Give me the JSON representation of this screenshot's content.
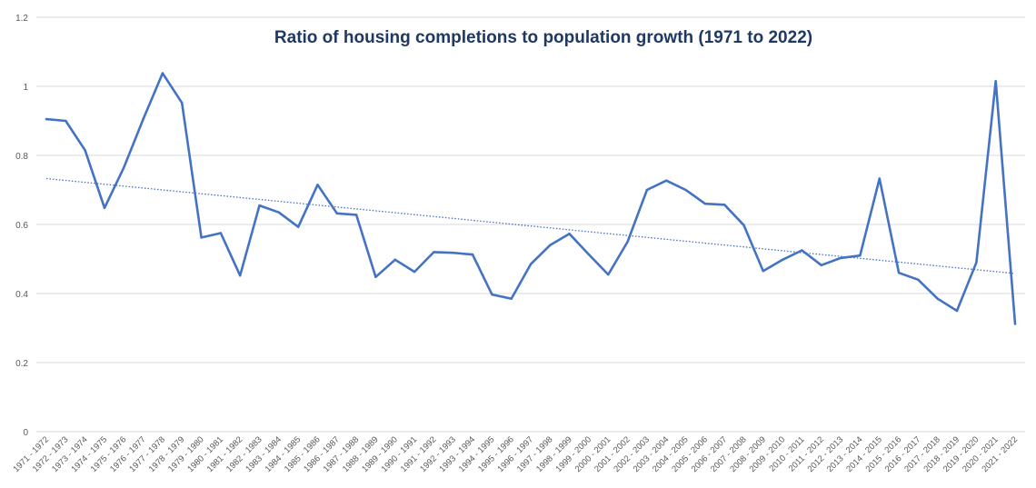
{
  "chart_data": {
    "type": "line",
    "title": "Ratio of housing completions to population growth (1971 to 2022)",
    "xlabel": "",
    "ylabel": "",
    "ylim": [
      0,
      1.2
    ],
    "yticks": [
      "0",
      "0.2",
      "0.4",
      "0.6",
      "0.8",
      "1",
      "1.2"
    ],
    "ytick_values": [
      0,
      0.2,
      0.4,
      0.6,
      0.8,
      1.0,
      1.2
    ],
    "grid": true,
    "legend": "none",
    "categories": [
      "1971 - 1972",
      "1972 - 1973",
      "1973 - 1974",
      "1974 - 1975",
      "1975 - 1976",
      "1976 - 1977",
      "1977 - 1978",
      "1978 - 1979",
      "1979 - 1980",
      "1980 - 1981",
      "1981 - 1982",
      "1982 - 1983",
      "1983 - 1984",
      "1984 - 1985",
      "1985 - 1986",
      "1986 - 1987",
      "1987 - 1988",
      "1988 - 1989",
      "1989 - 1990",
      "1990 - 1991",
      "1991 - 1992",
      "1992 - 1993",
      "1993 - 1994",
      "1994 - 1995",
      "1995 - 1996",
      "1996 - 1997",
      "1997 - 1998",
      "1998 - 1999",
      "1999 - 2000",
      "2000 - 2001",
      "2001 - 2002",
      "2002 - 2003",
      "2003 - 2004",
      "2004 - 2005",
      "2005 - 2006",
      "2006 - 2007",
      "2007 - 2008",
      "2008 - 2009",
      "2009 - 2010",
      "2010 - 2011",
      "2011 - 2012",
      "2012 - 2013",
      "2013 - 2014",
      "2014 - 2015",
      "2015 - 2016",
      "2016 - 2017",
      "2017 - 2018",
      "2018 - 2019",
      "2019 - 2020",
      "2020 - 2021",
      "2021 - 2022"
    ],
    "series": [
      {
        "name": "Ratio",
        "color": "#4472c4",
        "values": [
          0.905,
          0.9,
          0.815,
          0.648,
          0.765,
          0.905,
          1.038,
          0.952,
          0.562,
          0.575,
          0.452,
          0.655,
          0.635,
          0.593,
          0.715,
          0.632,
          0.628,
          0.448,
          0.498,
          0.463,
          0.52,
          0.518,
          0.513,
          0.397,
          0.385,
          0.485,
          0.54,
          0.573,
          0.513,
          0.455,
          0.55,
          0.7,
          0.727,
          0.7,
          0.66,
          0.657,
          0.598,
          0.465,
          0.498,
          0.525,
          0.482,
          0.503,
          0.51,
          0.733,
          0.46,
          0.44,
          0.385,
          0.35,
          0.49,
          1.015,
          0.312
        ]
      }
    ],
    "trendline": {
      "type": "linear",
      "style": "dotted",
      "color": "#4472c4",
      "start": 0.733,
      "end": 0.458
    }
  }
}
